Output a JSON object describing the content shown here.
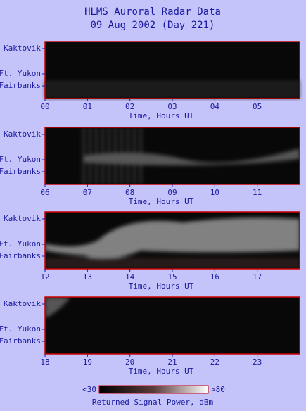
{
  "header": {
    "title": "HLMS Auroral Radar Data",
    "subtitle": "09 Aug 2002 (Day 221)"
  },
  "panels": [
    {
      "x_ticks": [
        "00",
        "01",
        "02",
        "03",
        "04",
        "05"
      ],
      "x_label": "Time, Hours UT",
      "y_labels": [
        "Kaktovik",
        "Ft. Yukon",
        "Fairbanks"
      ]
    },
    {
      "x_ticks": [
        "06",
        "07",
        "08",
        "09",
        "10",
        "11"
      ],
      "x_label": "Time, Hours UT",
      "y_labels": [
        "Kaktovik",
        "Ft. Yukon",
        "Fairbanks"
      ]
    },
    {
      "x_ticks": [
        "12",
        "13",
        "14",
        "15",
        "16",
        "17"
      ],
      "x_label": "Time, Hours UT",
      "y_labels": [
        "Kaktovik",
        "Ft. Yukon",
        "Fairbanks"
      ]
    },
    {
      "x_ticks": [
        "18",
        "19",
        "20",
        "21",
        "22",
        "23"
      ],
      "x_label": "Time, Hours UT",
      "y_labels": [
        "Kaktovik",
        "Ft. Yukon",
        "Fairbanks"
      ]
    }
  ],
  "colorbar": {
    "min_label": "<30",
    "max_label": ">80",
    "label": "Returned Signal Power, dBm"
  }
}
